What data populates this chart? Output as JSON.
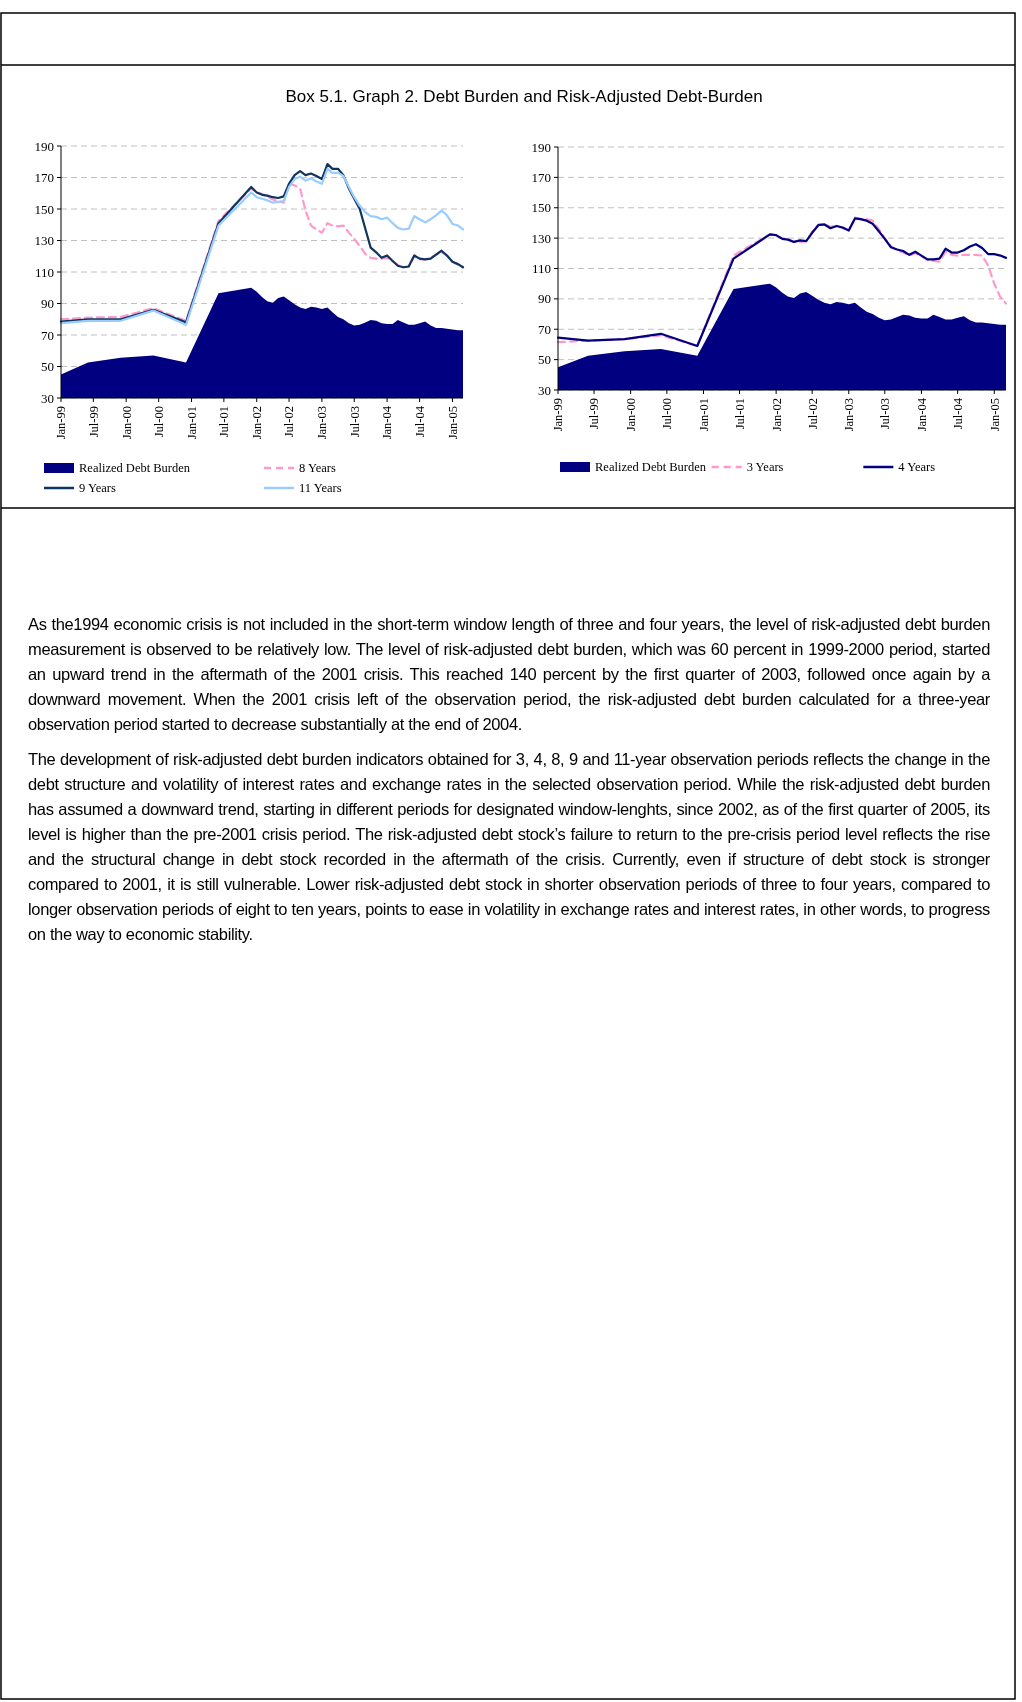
{
  "chart_data": [
    {
      "type": "line",
      "title": "Box 5.1. Graph 2. Debt Burden and Risk-Adjusted Debt-Burden",
      "x": [
        "1999-01",
        "1999-06",
        "1999-12",
        "2000-06",
        "2000-12",
        "2001-06",
        "2001-12",
        "2002-01",
        "2002-02",
        "2002-03",
        "2002-04",
        "2002-05",
        "2002-06",
        "2002-07",
        "2002-08",
        "2002-09",
        "2002-10",
        "2002-11",
        "2002-12",
        "2003-01",
        "2003-02",
        "2003-03",
        "2003-04",
        "2003-05",
        "2003-06",
        "2003-07",
        "2003-08",
        "2003-09",
        "2003-10",
        "2003-11",
        "2003-12",
        "2004-01",
        "2004-02",
        "2004-03",
        "2004-04",
        "2004-05",
        "2004-06",
        "2004-07",
        "2004-08",
        "2004-09",
        "2004-10",
        "2004-11",
        "2004-12",
        "2005-01",
        "2005-02",
        "2005-03"
      ],
      "series": [
        {
          "name": "Realized Debt Burden",
          "type": "area",
          "color": "#000080",
          "values": [
            45,
            52.5,
            55.5,
            57,
            52.5,
            96.5,
            100,
            97.5,
            94,
            91.5,
            90.5,
            93.5,
            94.5,
            92,
            89.5,
            87.5,
            86.5,
            88,
            87.5,
            86.5,
            87.5,
            84.5,
            81.5,
            80,
            77.5,
            76,
            76.5,
            78,
            79.5,
            79,
            77.5,
            77,
            77,
            79.5,
            78,
            76.5,
            76.5,
            77.5,
            78.5,
            76,
            74.5,
            74.5,
            74,
            73.5,
            73,
            73
          ]
        },
        {
          "name": "8 Years",
          "color": "#ff99cc",
          "line_style": "dashed",
          "values": [
            80,
            81,
            81.5,
            87,
            79,
            142.5,
            163,
            160.5,
            159.5,
            158,
            156,
            155,
            154,
            166,
            165,
            163,
            149,
            139.5,
            137,
            135,
            141,
            139.5,
            139,
            139.5,
            135,
            131,
            126.5,
            121.5,
            119,
            118.5,
            118.5,
            119,
            117,
            114.5,
            113,
            113.5,
            120,
            118,
            118,
            119,
            121,
            122.5,
            120.5,
            116.5,
            114.5,
            113
          ]
        },
        {
          "name": "9 Years",
          "color": "#0f3460",
          "values": [
            78.5,
            80,
            80,
            86,
            78,
            141,
            164,
            160.5,
            159,
            158.5,
            157.5,
            157,
            158,
            166,
            171.5,
            174,
            171.5,
            172.5,
            171,
            169,
            178.5,
            175.5,
            175.5,
            171.5,
            163,
            156.5,
            150,
            137.5,
            125.5,
            122.5,
            119,
            120.5,
            117,
            114,
            113,
            113.5,
            120.5,
            118.5,
            118,
            118.5,
            121,
            123.5,
            120.5,
            116.5,
            115,
            113
          ]
        },
        {
          "name": "11 Years",
          "color": "#99ccff",
          "values": [
            77.5,
            79,
            79,
            85.5,
            76.5,
            139.5,
            160.5,
            157.5,
            156.5,
            155.5,
            154,
            154.5,
            155,
            164,
            169,
            170.5,
            168,
            169.5,
            167.5,
            166,
            175.5,
            173,
            173,
            171,
            164,
            157.5,
            152,
            148,
            145.5,
            145,
            143.5,
            144.5,
            141,
            138,
            137,
            137.5,
            145.5,
            143.5,
            141.5,
            143.5,
            146,
            149,
            146,
            140.5,
            139.5,
            137
          ]
        }
      ],
      "xlim": [
        "1999-01",
        "2005-03"
      ],
      "xticks": [
        {
          "value": "1999-01",
          "label": "Jan-99"
        },
        {
          "value": "1999-07",
          "label": "Jul-99"
        },
        {
          "value": "2000-01",
          "label": "Jan-00"
        },
        {
          "value": "2000-07",
          "label": "Jul-00"
        },
        {
          "value": "2001-01",
          "label": "Jan-01"
        },
        {
          "value": "2001-07",
          "label": "Jul-01"
        },
        {
          "value": "2002-01",
          "label": "Jan-02"
        },
        {
          "value": "2002-07",
          "label": "Jul-02"
        },
        {
          "value": "2003-01",
          "label": "Jan-03"
        },
        {
          "value": "2003-07",
          "label": "Jul-03"
        },
        {
          "value": "2004-01",
          "label": "Jan-04"
        },
        {
          "value": "2004-07",
          "label": "Jul-04"
        },
        {
          "value": "2005-01",
          "label": "Jan-05"
        }
      ],
      "ylim": [
        30,
        190
      ],
      "yticks": [
        30,
        50,
        70,
        90,
        110,
        130,
        150,
        170,
        190
      ],
      "grid": "y",
      "legend": "bottom",
      "marker": "none"
    },
    {
      "type": "line",
      "x": [
        "1999-01",
        "1999-06",
        "1999-12",
        "2000-06",
        "2000-12",
        "2001-06",
        "2001-12",
        "2002-01",
        "2002-02",
        "2002-03",
        "2002-04",
        "2002-05",
        "2002-06",
        "2002-07",
        "2002-08",
        "2002-09",
        "2002-10",
        "2002-11",
        "2002-12",
        "2003-01",
        "2003-02",
        "2003-03",
        "2003-04",
        "2003-05",
        "2003-06",
        "2003-07",
        "2003-08",
        "2003-09",
        "2003-10",
        "2003-11",
        "2003-12",
        "2004-01",
        "2004-02",
        "2004-03",
        "2004-04",
        "2004-05",
        "2004-06",
        "2004-07",
        "2004-08",
        "2004-09",
        "2004-10",
        "2004-11",
        "2004-12",
        "2005-01",
        "2005-02",
        "2005-03"
      ],
      "series": [
        {
          "name": "Realized Debt Burden",
          "type": "area",
          "color": "#000080",
          "values": [
            45,
            52.5,
            55.5,
            57,
            52.5,
            96.5,
            100,
            97.5,
            94,
            91.5,
            90.5,
            93.5,
            94.5,
            92,
            89.5,
            87.5,
            86.5,
            88,
            87.5,
            86.5,
            87.5,
            84.5,
            81.5,
            80,
            77.5,
            76,
            76.5,
            78,
            79.5,
            79,
            77.5,
            77,
            77,
            79.5,
            78,
            76.5,
            76.5,
            77.5,
            78.5,
            76,
            74.5,
            74.5,
            74,
            73.5,
            73,
            73
          ]
        },
        {
          "name": "3 Years",
          "color": "#ff99cc",
          "line_style": "dashed",
          "values": [
            61.5,
            62.5,
            63.5,
            66,
            59,
            118.5,
            132.5,
            131.5,
            130,
            129.5,
            127.5,
            127.5,
            128,
            134,
            139,
            139,
            137.5,
            138,
            136.5,
            135.5,
            143.5,
            142.5,
            142.5,
            141.5,
            136,
            130,
            124.5,
            122,
            120.5,
            118.5,
            120,
            118,
            115.5,
            115,
            114.5,
            121,
            119,
            118.5,
            119,
            119,
            119,
            118.5,
            112,
            100,
            91,
            87
          ]
        },
        {
          "name": "4 Years",
          "color": "#000080",
          "values": [
            64.5,
            62.5,
            63.5,
            67,
            59,
            116.5,
            132.5,
            132,
            129.5,
            129,
            127.5,
            128.5,
            128,
            133.5,
            138.5,
            139,
            136.5,
            138,
            137,
            135,
            143,
            142.5,
            141.5,
            139.5,
            134.5,
            129.5,
            124,
            122.5,
            121.5,
            119,
            121,
            118.5,
            116,
            116,
            116.5,
            123,
            120.5,
            120.5,
            122,
            124.5,
            126,
            123.5,
            119.5,
            119.5,
            118.5,
            117
          ]
        }
      ],
      "xlim": [
        "1999-01",
        "2005-03"
      ],
      "xticks": [
        {
          "value": "1999-01",
          "label": "Jan-99"
        },
        {
          "value": "1999-07",
          "label": "Jul-99"
        },
        {
          "value": "2000-01",
          "label": "Jan-00"
        },
        {
          "value": "2000-07",
          "label": "Jul-00"
        },
        {
          "value": "2001-01",
          "label": "Jan-01"
        },
        {
          "value": "2001-07",
          "label": "Jul-01"
        },
        {
          "value": "2002-01",
          "label": "Jan-02"
        },
        {
          "value": "2002-07",
          "label": "Jul-02"
        },
        {
          "value": "2003-01",
          "label": "Jan-03"
        },
        {
          "value": "2003-07",
          "label": "Jul-03"
        },
        {
          "value": "2004-01",
          "label": "Jan-04"
        },
        {
          "value": "2004-07",
          "label": "Jul-04"
        },
        {
          "value": "2005-01",
          "label": "Jan-05"
        }
      ],
      "ylim": [
        30,
        190
      ],
      "yticks": [
        30,
        50,
        70,
        90,
        110,
        130,
        150,
        170,
        190
      ],
      "grid": "y",
      "legend": "bottom",
      "marker": "none"
    },
    {
      "type": "other",
      "annotations": [
        "As the1994 economic crisis is not included in the short-term window length of three and four years, the level of risk-adjusted debt burden measurement is observed to be relatively low. The level of risk-adjusted debt burden, which was 60 percent in 1999-2000 period, started an upward trend in the aftermath of the 2001 crisis. This reached 140 percent by the first quarter of 2003, followed once again by a downward movement. When the 2001 crisis left of the observation period, the risk-adjusted debt burden calculated for a three-year observation period started to decrease substantially at the end of 2004.",
        "The development of risk-adjusted debt burden indicators obtained for 3, 4, 8, 9 and 11-year observation periods reflects the change in the debt structure and volatility of interest rates and exchange rates in the selected observation period. While the risk-adjusted debt burden has assumed a downward trend, starting in different periods for designated window-lenghts, since 2002, as of the first quarter of 2005, its level is higher than the pre-2001 crisis period. The risk-adjusted debt stock’s failure to return to the pre-crisis period level reflects the rise and the structural change in debt stock recorded in the aftermath of the crisis. Currently, even if structure of debt stock is stronger compared to 2001, it is still vulnerable. Lower risk-adjusted debt stock in shorter observation periods of three to four years, compared to longer observation periods of eight to ten years, points to ease in volatility in exchange rates and interest rates, in other words, to progress on the way to economic stability."
      ]
    }
  ]
}
